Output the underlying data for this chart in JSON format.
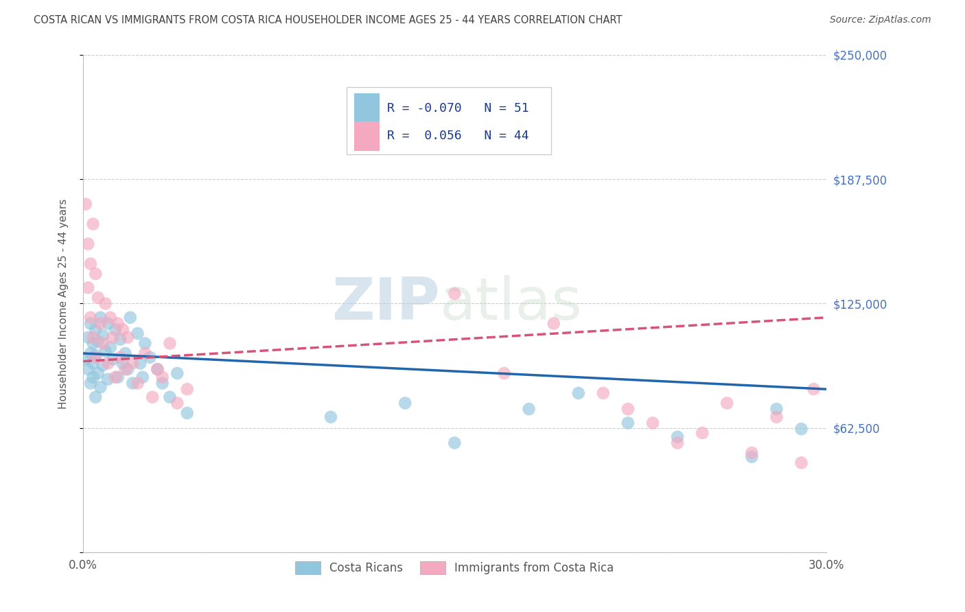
{
  "title": "COSTA RICAN VS IMMIGRANTS FROM COSTA RICA HOUSEHOLDER INCOME AGES 25 - 44 YEARS CORRELATION CHART",
  "source": "Source: ZipAtlas.com",
  "ylabel": "Householder Income Ages 25 - 44 years",
  "xlim": [
    0.0,
    0.3
  ],
  "ylim": [
    0,
    250000
  ],
  "yticks": [
    0,
    62500,
    125000,
    187500,
    250000
  ],
  "ytick_labels": [
    "",
    "$62,500",
    "$125,000",
    "$187,500",
    "$250,000"
  ],
  "xticks": [
    0.0,
    0.3
  ],
  "xtick_labels": [
    "0.0%",
    "30.0%"
  ],
  "legend_labels": [
    "Costa Ricans",
    "Immigrants from Costa Rica"
  ],
  "R_blue": -0.07,
  "N_blue": 51,
  "R_pink": 0.056,
  "N_pink": 44,
  "blue_color": "#92c5de",
  "pink_color": "#f4a9c0",
  "blue_line_color": "#2166ac",
  "pink_line_color": "#d6537a",
  "watermark": "ZIPatlas",
  "watermark_color": "#ccdde8",
  "background_color": "#ffffff",
  "grid_color": "#cccccc",
  "title_color": "#404040",
  "axis_label_color": "#555555",
  "tick_color_y": "#4472c4",
  "blue_trend_y0": 100000,
  "blue_trend_y1": 82000,
  "pink_trend_y0": 96000,
  "pink_trend_y1": 118000,
  "blue_scatter_x": [
    0.001,
    0.002,
    0.002,
    0.003,
    0.003,
    0.003,
    0.004,
    0.004,
    0.004,
    0.005,
    0.005,
    0.005,
    0.006,
    0.006,
    0.007,
    0.007,
    0.008,
    0.008,
    0.009,
    0.01,
    0.01,
    0.011,
    0.012,
    0.013,
    0.014,
    0.015,
    0.016,
    0.017,
    0.018,
    0.019,
    0.02,
    0.022,
    0.023,
    0.024,
    0.025,
    0.027,
    0.03,
    0.032,
    0.035,
    0.038,
    0.042,
    0.1,
    0.13,
    0.15,
    0.18,
    0.2,
    0.22,
    0.24,
    0.27,
    0.28,
    0.29
  ],
  "blue_scatter_y": [
    97000,
    108000,
    92000,
    115000,
    100000,
    85000,
    105000,
    95000,
    88000,
    112000,
    99000,
    78000,
    106000,
    90000,
    118000,
    83000,
    109000,
    94000,
    101000,
    115000,
    87000,
    103000,
    97000,
    112000,
    88000,
    107000,
    95000,
    100000,
    92000,
    118000,
    85000,
    110000,
    95000,
    88000,
    105000,
    98000,
    92000,
    85000,
    78000,
    90000,
    70000,
    68000,
    75000,
    55000,
    72000,
    80000,
    65000,
    58000,
    48000,
    72000,
    62000
  ],
  "pink_scatter_x": [
    0.001,
    0.002,
    0.002,
    0.003,
    0.003,
    0.004,
    0.004,
    0.005,
    0.005,
    0.006,
    0.007,
    0.008,
    0.009,
    0.01,
    0.011,
    0.012,
    0.013,
    0.014,
    0.015,
    0.016,
    0.017,
    0.018,
    0.02,
    0.022,
    0.025,
    0.028,
    0.03,
    0.032,
    0.035,
    0.038,
    0.042,
    0.15,
    0.17,
    0.19,
    0.21,
    0.22,
    0.23,
    0.24,
    0.25,
    0.26,
    0.27,
    0.28,
    0.29,
    0.295
  ],
  "pink_scatter_y": [
    175000,
    155000,
    133000,
    145000,
    118000,
    165000,
    108000,
    140000,
    98000,
    128000,
    115000,
    105000,
    125000,
    95000,
    118000,
    108000,
    88000,
    115000,
    98000,
    112000,
    92000,
    108000,
    95000,
    85000,
    100000,
    78000,
    92000,
    88000,
    105000,
    75000,
    82000,
    130000,
    90000,
    115000,
    80000,
    72000,
    65000,
    55000,
    60000,
    75000,
    50000,
    68000,
    45000,
    82000
  ]
}
